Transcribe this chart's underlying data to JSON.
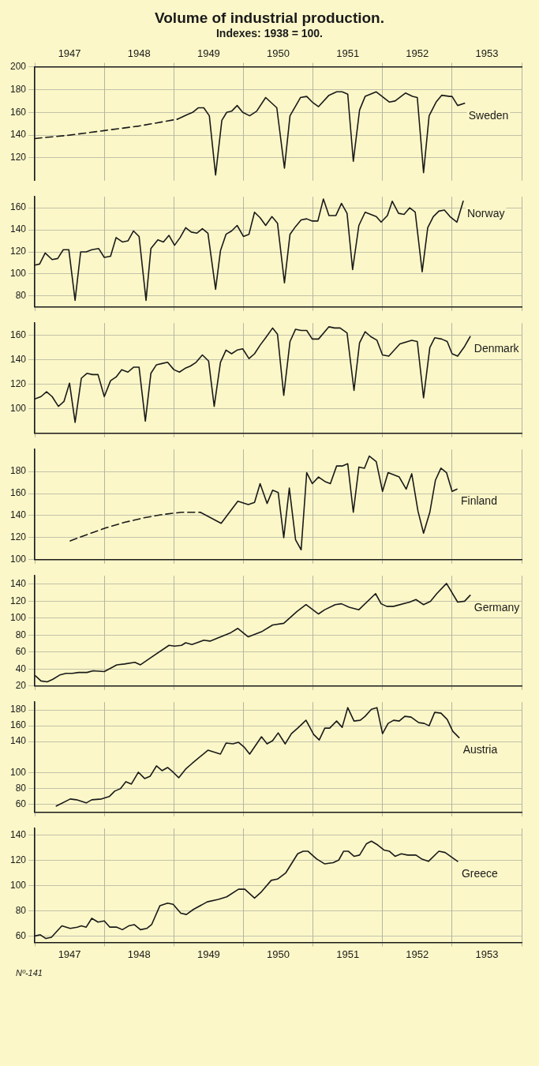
{
  "chart_data": [
    {
      "type": "line",
      "title": "Volume of industrial production.",
      "subtitle": "Indexes: 1938 = 100.",
      "grid": true,
      "xlim": [
        1947,
        1954
      ],
      "xticks": [
        {
          "value": 1947,
          "label": null
        },
        {
          "value": 1947.5,
          "label": "1947"
        },
        {
          "value": 1948,
          "label": null
        },
        {
          "value": 1948.5,
          "label": "1948"
        },
        {
          "value": 1949,
          "label": null
        },
        {
          "value": 1949.5,
          "label": "1949"
        },
        {
          "value": 1950,
          "label": null
        },
        {
          "value": 1950.5,
          "label": "1950"
        },
        {
          "value": 1951,
          "label": null
        },
        {
          "value": 1951.5,
          "label": "1951"
        },
        {
          "value": 1952,
          "label": null
        },
        {
          "value": 1952.5,
          "label": "1952"
        },
        {
          "value": 1953,
          "label": null
        },
        {
          "value": 1953.5,
          "label": "1953"
        },
        {
          "value": 1954,
          "label": null
        }
      ],
      "ylim": [
        100,
        200
      ],
      "yticks": [
        120,
        140,
        160,
        180,
        200
      ],
      "series": [
        {
          "color": "#1a1a1a",
          "line_style": "dashed",
          "x": [
            1947.0,
            1947.5,
            1948.0,
            1948.5,
            1949.05
          ],
          "values": [
            137,
            140,
            144,
            148,
            154
          ]
        },
        {
          "name": "Sweden",
          "color": "#1a1a1a",
          "x": [
            1949.05,
            1949.19,
            1949.27,
            1949.35,
            1949.43,
            1949.51,
            1949.6,
            1949.69,
            1949.76,
            1949.83,
            1949.91,
            1949.99,
            1950.09,
            1950.19,
            1950.32,
            1950.48,
            1950.59,
            1950.67,
            1950.82,
            1950.91,
            1950.99,
            1951.08,
            1951.23,
            1951.34,
            1951.42,
            1951.5,
            1951.58,
            1951.67,
            1951.75,
            1951.91,
            1952.1,
            1952.18,
            1952.33,
            1952.43,
            1952.5,
            1952.59,
            1952.67,
            1952.77,
            1952.85,
            1952.97,
            1953.0,
            1953.08,
            1953.18
          ],
          "values": [
            154,
            158,
            160,
            164,
            164,
            157,
            105,
            153,
            160,
            161,
            166,
            160,
            157,
            161,
            173,
            164,
            111,
            157,
            173,
            174,
            169,
            165,
            175,
            178,
            178,
            176,
            117,
            162,
            174,
            178,
            169,
            170,
            177,
            174,
            173,
            107,
            157,
            169,
            175,
            174,
            174,
            166,
            168
          ]
        }
      ]
    },
    {
      "type": "line",
      "grid": true,
      "tick_labels": "y",
      "xlim": [
        1947,
        1954
      ],
      "xticks": [
        {
          "value": 1947,
          "label": null
        },
        {
          "value": 1948,
          "label": null
        },
        {
          "value": 1949,
          "label": null
        },
        {
          "value": 1950,
          "label": null
        },
        {
          "value": 1951,
          "label": null
        },
        {
          "value": 1952,
          "label": null
        },
        {
          "value": 1953,
          "label": null
        },
        {
          "value": 1954,
          "label": null
        }
      ],
      "ylim": [
        70,
        170
      ],
      "yticks": [
        80,
        100,
        120,
        140,
        160
      ],
      "series": [
        {
          "name": "Norway",
          "color": "#1a1a1a",
          "x": [
            1947.0,
            1947.07,
            1947.15,
            1947.25,
            1947.33,
            1947.41,
            1947.49,
            1947.58,
            1947.66,
            1947.74,
            1947.82,
            1947.92,
            1948.0,
            1948.09,
            1948.17,
            1948.26,
            1948.34,
            1948.42,
            1948.5,
            1948.6,
            1948.67,
            1948.77,
            1948.85,
            1948.93,
            1949.01,
            1949.09,
            1949.17,
            1949.25,
            1949.33,
            1949.41,
            1949.49,
            1949.6,
            1949.67,
            1949.75,
            1949.83,
            1949.91,
            1950.0,
            1950.08,
            1950.16,
            1950.24,
            1950.32,
            1950.41,
            1950.49,
            1950.59,
            1950.67,
            1950.75,
            1950.83,
            1950.91,
            1950.99,
            1951.07,
            1951.15,
            1951.23,
            1951.33,
            1951.41,
            1951.49,
            1951.57,
            1951.66,
            1951.75,
            1951.83,
            1951.91,
            1951.98,
            1952.07,
            1952.14,
            1952.23,
            1952.31,
            1952.39,
            1952.47,
            1952.57,
            1952.65,
            1952.73,
            1952.81,
            1952.89,
            1952.97,
            1953.07,
            1953.16
          ],
          "values": [
            108,
            109,
            119,
            113,
            114,
            122,
            122,
            76,
            120,
            120,
            122,
            123,
            115,
            116,
            133,
            129,
            130,
            139,
            134,
            76,
            123,
            131,
            129,
            135,
            126,
            133,
            142,
            138,
            137,
            141,
            137,
            86,
            121,
            136,
            139,
            144,
            134,
            136,
            156,
            151,
            144,
            152,
            146,
            92,
            136,
            143,
            149,
            150,
            148,
            148,
            168,
            153,
            153,
            164,
            155,
            104,
            144,
            156,
            154,
            152,
            147,
            153,
            166,
            155,
            154,
            160,
            156,
            102,
            142,
            152,
            157,
            158,
            152,
            147,
            166
          ]
        }
      ]
    },
    {
      "type": "line",
      "grid": true,
      "tick_labels": "y",
      "xlim": [
        1947,
        1954
      ],
      "xticks": [
        {
          "value": 1947,
          "label": null
        },
        {
          "value": 1948,
          "label": null
        },
        {
          "value": 1949,
          "label": null
        },
        {
          "value": 1950,
          "label": null
        },
        {
          "value": 1951,
          "label": null
        },
        {
          "value": 1952,
          "label": null
        },
        {
          "value": 1953,
          "label": null
        },
        {
          "value": 1954,
          "label": null
        }
      ],
      "ylim": [
        80,
        170
      ],
      "yticks": [
        100,
        120,
        140,
        160
      ],
      "series": [
        {
          "name": "Denmark",
          "color": "#1a1a1a",
          "x": [
            1947.0,
            1947.09,
            1947.17,
            1947.25,
            1947.34,
            1947.42,
            1947.5,
            1947.58,
            1947.67,
            1947.75,
            1947.83,
            1947.91,
            1948.0,
            1948.09,
            1948.17,
            1948.25,
            1948.34,
            1948.42,
            1948.5,
            1948.59,
            1948.67,
            1948.75,
            1948.83,
            1948.91,
            1949.0,
            1949.08,
            1949.16,
            1949.24,
            1949.32,
            1949.41,
            1949.5,
            1949.58,
            1949.67,
            1949.75,
            1949.83,
            1949.91,
            1949.99,
            1950.08,
            1950.16,
            1950.24,
            1950.32,
            1950.42,
            1950.49,
            1950.58,
            1950.67,
            1950.75,
            1950.83,
            1950.91,
            1950.99,
            1951.08,
            1951.23,
            1951.31,
            1951.39,
            1951.49,
            1951.59,
            1951.67,
            1951.75,
            1951.83,
            1951.92,
            1952.0,
            1952.09,
            1952.25,
            1952.42,
            1952.5,
            1952.59,
            1952.68,
            1952.75,
            1952.85,
            1952.93,
            1953.0,
            1953.08,
            1953.18,
            1953.26
          ],
          "values": [
            108,
            110,
            114,
            110,
            102,
            106,
            121,
            89,
            125,
            129,
            128,
            128,
            110,
            123,
            126,
            132,
            130,
            134,
            134,
            90,
            129,
            136,
            137,
            138,
            132,
            130,
            133,
            135,
            138,
            144,
            139,
            102,
            138,
            148,
            145,
            148,
            149,
            141,
            145,
            152,
            158,
            166,
            161,
            111,
            155,
            165,
            164,
            164,
            157,
            157,
            167,
            166,
            166,
            162,
            115,
            154,
            163,
            159,
            156,
            144,
            143,
            153,
            156,
            155,
            109,
            150,
            158,
            157,
            155,
            145,
            143,
            151,
            159
          ]
        }
      ]
    },
    {
      "type": "line",
      "grid": true,
      "tick_labels": "y",
      "xlim": [
        1947,
        1954
      ],
      "xticks": [
        {
          "value": 1947,
          "label": null
        },
        {
          "value": 1948,
          "label": null
        },
        {
          "value": 1949,
          "label": null
        },
        {
          "value": 1950,
          "label": null
        },
        {
          "value": 1951,
          "label": null
        },
        {
          "value": 1952,
          "label": null
        },
        {
          "value": 1953,
          "label": null
        },
        {
          "value": 1954,
          "label": null
        }
      ],
      "ylim": [
        100,
        200
      ],
      "yticks": [
        100,
        120,
        140,
        160,
        180
      ],
      "series": [
        {
          "color": "#1a1a1a",
          "line_style": "dashed",
          "x": [
            1947.51,
            1947.76,
            1948.03,
            1948.3,
            1948.57,
            1948.84,
            1949.11,
            1949.38
          ],
          "values": [
            117,
            123,
            129,
            134,
            138,
            141,
            143,
            143
          ]
        },
        {
          "name": "Finland",
          "color": "#1a1a1a",
          "x": [
            1949.38,
            1949.68,
            1949.92,
            1950.07,
            1950.16,
            1950.24,
            1950.34,
            1950.42,
            1950.5,
            1950.58,
            1950.66,
            1950.75,
            1950.83,
            1950.91,
            1950.99,
            1951.08,
            1951.17,
            1951.25,
            1951.34,
            1951.42,
            1951.5,
            1951.58,
            1951.66,
            1951.74,
            1951.81,
            1951.91,
            1952.0,
            1952.08,
            1952.16,
            1952.24,
            1952.34,
            1952.42,
            1952.51,
            1952.59,
            1952.68,
            1952.76,
            1952.84,
            1952.92,
            1953.0,
            1953.07
          ],
          "values": [
            143,
            133,
            153,
            150,
            152,
            169,
            151,
            163,
            161,
            120,
            165,
            118,
            109,
            179,
            169,
            175,
            171,
            169,
            185,
            185,
            187,
            143,
            184,
            183,
            194,
            189,
            162,
            179,
            177,
            175,
            164,
            178,
            144,
            124,
            143,
            172,
            183,
            179,
            162,
            164
          ]
        }
      ]
    },
    {
      "type": "line",
      "grid": true,
      "tick_labels": "y",
      "xlim": [
        1947,
        1954
      ],
      "xticks": [
        {
          "value": 1947,
          "label": null
        },
        {
          "value": 1948,
          "label": null
        },
        {
          "value": 1949,
          "label": null
        },
        {
          "value": 1950,
          "label": null
        },
        {
          "value": 1951,
          "label": null
        },
        {
          "value": 1952,
          "label": null
        },
        {
          "value": 1953,
          "label": null
        },
        {
          "value": 1954,
          "label": null
        }
      ],
      "ylim": [
        20,
        150
      ],
      "yticks": [
        20,
        40,
        60,
        80,
        100,
        120,
        140
      ],
      "series": [
        {
          "name": "Germany",
          "color": "#1a1a1a",
          "x": [
            1947.01,
            1947.09,
            1947.18,
            1947.26,
            1947.36,
            1947.45,
            1947.54,
            1947.63,
            1947.75,
            1947.84,
            1948.0,
            1948.18,
            1948.29,
            1948.44,
            1948.52,
            1948.66,
            1948.93,
            1949.01,
            1949.11,
            1949.17,
            1949.26,
            1949.43,
            1949.52,
            1949.61,
            1949.82,
            1949.92,
            1950.07,
            1950.26,
            1950.42,
            1950.58,
            1950.77,
            1950.9,
            1951.08,
            1951.17,
            1951.32,
            1951.41,
            1951.52,
            1951.66,
            1951.9,
            1951.98,
            1952.06,
            1952.16,
            1952.39,
            1952.48,
            1952.59,
            1952.69,
            1952.78,
            1952.92,
            1953.08,
            1953.18,
            1953.26
          ],
          "values": [
            32,
            26,
            25,
            28,
            33,
            35,
            35,
            36,
            36,
            38,
            37,
            45,
            46,
            48,
            45,
            53,
            68,
            67,
            68,
            71,
            69,
            74,
            73,
            76,
            83,
            88,
            78,
            84,
            92,
            94,
            108,
            116,
            105,
            110,
            116,
            117,
            113,
            110,
            129,
            117,
            114,
            114,
            119,
            122,
            116,
            120,
            129,
            141,
            119,
            120,
            127
          ]
        }
      ]
    },
    {
      "type": "line",
      "grid": true,
      "tick_labels": "y",
      "xlim": [
        1947,
        1954
      ],
      "xticks": [
        {
          "value": 1947,
          "label": null
        },
        {
          "value": 1948,
          "label": null
        },
        {
          "value": 1949,
          "label": null
        },
        {
          "value": 1950,
          "label": null
        },
        {
          "value": 1951,
          "label": null
        },
        {
          "value": 1952,
          "label": null
        },
        {
          "value": 1953,
          "label": null
        },
        {
          "value": 1954,
          "label": null
        }
      ],
      "ylim": [
        50,
        190
      ],
      "yticks": [
        60,
        80,
        100,
        140,
        160,
        180
      ],
      "series": [
        {
          "name": "Austria",
          "color": "#1a1a1a",
          "x": [
            1947.31,
            1947.51,
            1947.6,
            1947.74,
            1947.82,
            1947.96,
            1948.07,
            1948.15,
            1948.23,
            1948.31,
            1948.39,
            1948.49,
            1948.58,
            1948.66,
            1948.75,
            1948.83,
            1948.91,
            1948.99,
            1949.07,
            1949.17,
            1949.26,
            1949.49,
            1949.67,
            1949.75,
            1949.85,
            1949.93,
            1950.01,
            1950.09,
            1950.26,
            1950.34,
            1950.42,
            1950.5,
            1950.6,
            1950.69,
            1950.78,
            1950.9,
            1951.01,
            1951.09,
            1951.17,
            1951.24,
            1951.34,
            1951.42,
            1951.5,
            1951.59,
            1951.68,
            1951.75,
            1951.84,
            1951.92,
            1952.0,
            1952.08,
            1952.16,
            1952.24,
            1952.32,
            1952.41,
            1952.52,
            1952.6,
            1952.67,
            1952.75,
            1952.84,
            1952.93,
            1953.01,
            1953.1
          ],
          "values": [
            58,
            67,
            66,
            62,
            66,
            67,
            70,
            77,
            80,
            89,
            86,
            101,
            93,
            96,
            109,
            103,
            107,
            101,
            94,
            105,
            112,
            129,
            124,
            138,
            137,
            139,
            133,
            124,
            146,
            137,
            141,
            151,
            137,
            150,
            157,
            167,
            149,
            142,
            157,
            157,
            166,
            158,
            183,
            166,
            167,
            172,
            181,
            183,
            150,
            163,
            167,
            166,
            172,
            171,
            164,
            163,
            160,
            177,
            176,
            168,
            153,
            145
          ]
        }
      ]
    },
    {
      "type": "line",
      "grid": true,
      "xlim": [
        1947,
        1954
      ],
      "xticks": [
        {
          "value": 1947,
          "label": null
        },
        {
          "value": 1947.5,
          "label": "1947"
        },
        {
          "value": 1948,
          "label": null
        },
        {
          "value": 1948.5,
          "label": "1948"
        },
        {
          "value": 1949,
          "label": null
        },
        {
          "value": 1949.5,
          "label": "1949"
        },
        {
          "value": 1950,
          "label": null
        },
        {
          "value": 1950.5,
          "label": "1950"
        },
        {
          "value": 1951,
          "label": null
        },
        {
          "value": 1951.5,
          "label": "1951"
        },
        {
          "value": 1952,
          "label": null
        },
        {
          "value": 1952.5,
          "label": "1952"
        },
        {
          "value": 1953,
          "label": null
        },
        {
          "value": 1953.5,
          "label": "1953"
        },
        {
          "value": 1954,
          "label": null
        }
      ],
      "ylim": [
        55,
        145
      ],
      "yticks": [
        60,
        80,
        100,
        120,
        140
      ],
      "annotations": [
        "Nº-141"
      ],
      "series": [
        {
          "name": "Greece",
          "color": "#1a1a1a",
          "x": [
            1947.0,
            1947.08,
            1947.16,
            1947.24,
            1947.39,
            1947.51,
            1947.61,
            1947.67,
            1947.74,
            1947.82,
            1947.91,
            1948.0,
            1948.08,
            1948.18,
            1948.26,
            1948.35,
            1948.43,
            1948.52,
            1948.61,
            1948.68,
            1948.8,
            1948.91,
            1948.99,
            1949.1,
            1949.18,
            1949.28,
            1949.48,
            1949.64,
            1949.76,
            1949.93,
            1950.02,
            1950.16,
            1950.26,
            1950.4,
            1950.49,
            1950.61,
            1950.78,
            1950.86,
            1950.93,
            1951.05,
            1951.17,
            1951.29,
            1951.37,
            1951.44,
            1951.51,
            1951.59,
            1951.67,
            1951.77,
            1951.84,
            1951.93,
            1952.02,
            1952.1,
            1952.18,
            1952.27,
            1952.36,
            1952.48,
            1952.56,
            1952.66,
            1952.81,
            1952.9,
            1953.08
          ],
          "values": [
            60,
            61,
            58,
            59,
            68,
            66,
            67,
            68,
            67,
            74,
            71,
            72,
            67,
            67,
            65,
            68,
            69,
            65,
            66,
            69,
            84,
            86,
            85,
            78,
            77,
            81,
            87,
            89,
            91,
            97,
            97,
            90,
            95,
            104,
            105,
            110,
            125,
            127,
            127,
            121,
            117,
            118,
            120,
            127,
            127,
            123,
            124,
            133,
            135,
            132,
            128,
            127,
            123,
            125,
            124,
            124,
            121,
            119,
            127,
            126,
            119
          ]
        }
      ]
    }
  ]
}
